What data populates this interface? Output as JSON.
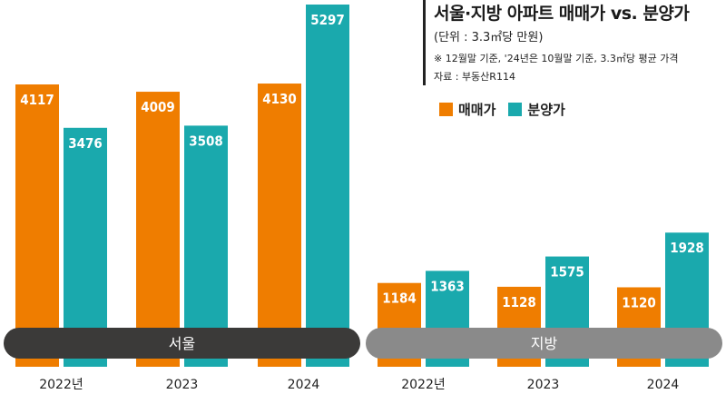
{
  "chart_data": {
    "type": "bar",
    "title": "서울·지방 아파트 매매가 vs. 분양가",
    "unit": "(단위 : 3.3㎡당 만원)",
    "note": "※ 12월말 기준, '24년은 10월말 기준, 3.3㎡당 평균 가격",
    "source": "자료 : 부동산R114",
    "series": [
      {
        "name": "매매가",
        "color": "#ef7d00"
      },
      {
        "name": "분양가",
        "color": "#1aa9ad"
      }
    ],
    "groups": [
      {
        "region": "서울",
        "categories": [
          "2022년",
          "2023",
          "2024"
        ],
        "values": {
          "매매가": [
            4117,
            4009,
            4130
          ],
          "분양가": [
            3476,
            3508,
            5297
          ]
        }
      },
      {
        "region": "지방",
        "categories": [
          "2022년",
          "2023",
          "2024"
        ],
        "values": {
          "매매가": [
            1184,
            1128,
            1120
          ],
          "분양가": [
            1363,
            1575,
            1928
          ]
        }
      }
    ],
    "ylim": [
      0,
      5297
    ]
  },
  "colors": {
    "seoul_band": "#3b3a39",
    "local_band": "#8a8a8a"
  }
}
